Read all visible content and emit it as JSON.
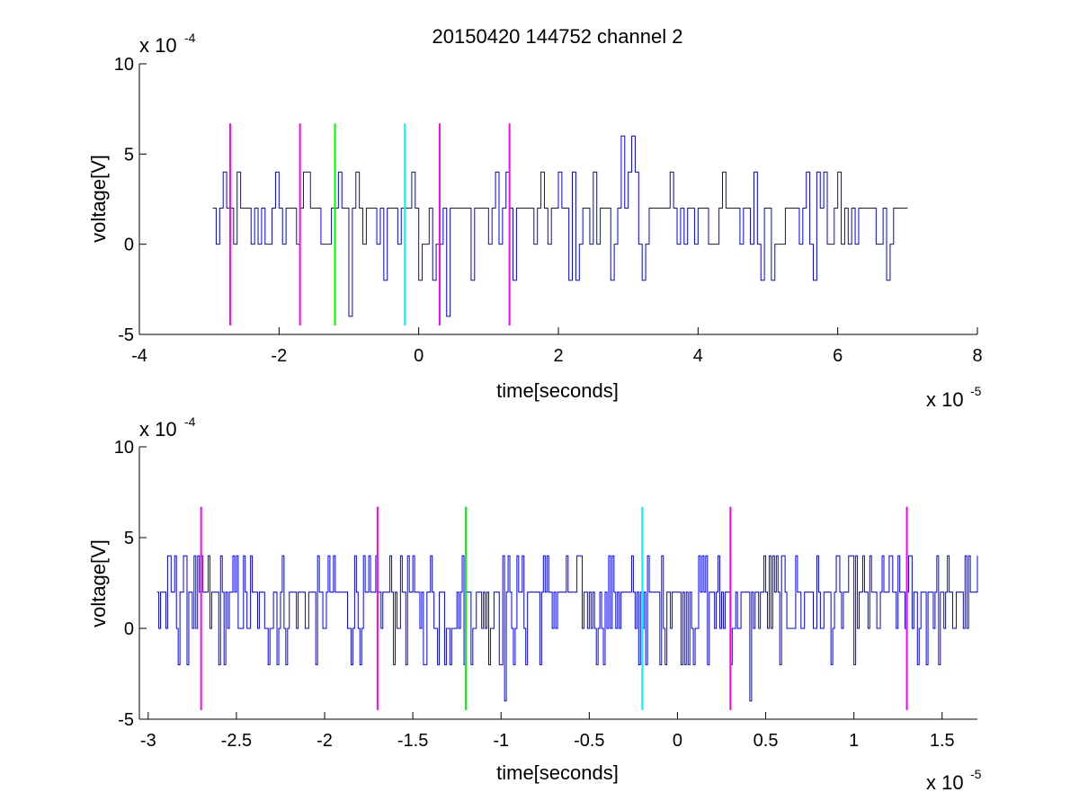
{
  "title": "20150420 144752 channel 2",
  "colors": {
    "signal": "#0000ff",
    "magenta": "#ff00ff",
    "green": "#00ff00",
    "cyan": "#00ffff",
    "axis": "#000000"
  },
  "chart_data": [
    {
      "type": "line",
      "title": "20150420 144752 channel 2",
      "xlabel": "time[seconds]",
      "ylabel": "voltage[V]",
      "x_multiplier_label": "x 10",
      "x_exponent": "-5",
      "y_multiplier_label": "x 10",
      "y_exponent": "-4",
      "xlim": [
        -4,
        8
      ],
      "ylim": [
        -5,
        10
      ],
      "x_ticks": [
        -4,
        -2,
        0,
        2,
        4,
        6,
        8
      ],
      "x_tick_labels": [
        "-4",
        "-2",
        "0",
        "2",
        "4",
        "6",
        "8"
      ],
      "y_ticks": [
        -5,
        0,
        5,
        10
      ],
      "y_tick_labels": [
        "-5",
        "0",
        "5",
        "10"
      ],
      "grid": false,
      "series": [
        {
          "x_range": [
            -2.95,
            7.0
          ],
          "sample_step": 0.05,
          "values_description": "quantized noise, levels in units of 1e-4 V",
          "levels": [
            -4,
            -2,
            0,
            2,
            4,
            6
          ],
          "typical_range": [
            -2,
            4
          ],
          "peaks": [
            {
              "x": 2.88,
              "y": 6
            },
            {
              "x": 3.06,
              "y": 6
            }
          ],
          "dips": [
            {
              "x": -0.98,
              "y": -4
            },
            {
              "x": 0.42,
              "y": -4
            }
          ]
        }
      ],
      "markers": [
        {
          "x": -2.7,
          "ymin": -4.5,
          "ymax": 6.7,
          "color": "magenta"
        },
        {
          "x": -1.7,
          "ymin": -4.5,
          "ymax": 6.7,
          "color": "magenta"
        },
        {
          "x": -1.2,
          "ymin": -4.5,
          "ymax": 6.7,
          "color": "green"
        },
        {
          "x": -0.2,
          "ymin": -4.5,
          "ymax": 6.7,
          "color": "cyan"
        },
        {
          "x": 0.3,
          "ymin": -4.5,
          "ymax": 6.7,
          "color": "magenta"
        },
        {
          "x": 1.3,
          "ymin": -4.5,
          "ymax": 6.7,
          "color": "magenta"
        }
      ]
    },
    {
      "type": "line",
      "title": "",
      "xlabel": "time[seconds]",
      "ylabel": "voltage[V]",
      "x_multiplier_label": "x 10",
      "x_exponent": "-5",
      "y_multiplier_label": "x 10",
      "y_exponent": "-4",
      "xlim": [
        -3.05,
        1.7
      ],
      "ylim": [
        -5,
        10
      ],
      "x_ticks": [
        -3,
        -2.5,
        -2,
        -1.5,
        -1,
        -0.5,
        0,
        0.5,
        1,
        1.5
      ],
      "x_tick_labels": [
        "-3",
        "-2.5",
        "-2",
        "-1.5",
        "-1",
        "-0.5",
        "0",
        "0.5",
        "1",
        "1.5"
      ],
      "y_ticks": [
        -5,
        0,
        5,
        10
      ],
      "y_tick_labels": [
        "-5",
        "0",
        "5",
        "10"
      ],
      "grid": false,
      "series": [
        {
          "x_range": [
            -2.95,
            1.7
          ],
          "sample_step": 0.01,
          "values_description": "quantized noise, levels in units of 1e-4 V",
          "levels": [
            -4,
            -2,
            0,
            2,
            4
          ],
          "typical_range": [
            -2,
            4
          ],
          "dips": [
            {
              "x": -0.98,
              "y": -4
            },
            {
              "x": 0.41,
              "y": -4
            }
          ]
        }
      ],
      "markers": [
        {
          "x": -2.7,
          "ymin": -4.5,
          "ymax": 6.7,
          "color": "magenta"
        },
        {
          "x": -1.7,
          "ymin": -4.5,
          "ymax": 6.7,
          "color": "magenta"
        },
        {
          "x": -1.2,
          "ymin": -4.5,
          "ymax": 6.7,
          "color": "green"
        },
        {
          "x": -0.2,
          "ymin": -4.5,
          "ymax": 6.7,
          "color": "cyan"
        },
        {
          "x": 0.3,
          "ymin": -4.5,
          "ymax": 6.7,
          "color": "magenta"
        },
        {
          "x": 1.3,
          "ymin": -4.5,
          "ymax": 6.7,
          "color": "magenta"
        }
      ]
    }
  ]
}
